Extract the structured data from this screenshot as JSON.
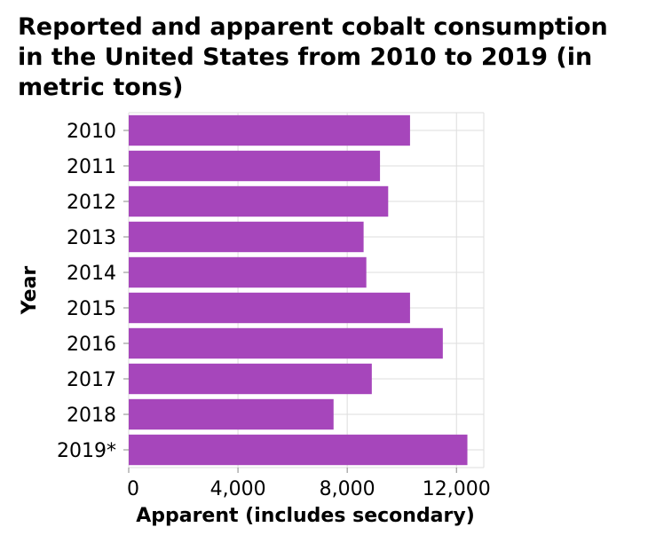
{
  "chart_data": {
    "type": "bar",
    "orientation": "horizontal",
    "title": "Reported and apparent cobalt consumption in the United States from 2010 to 2019 (in metric tons)",
    "xlabel": "Apparent (includes secondary)",
    "ylabel": "Year",
    "categories": [
      "2010",
      "2011",
      "2012",
      "2013",
      "2014",
      "2015",
      "2016",
      "2017",
      "2018",
      "2019*"
    ],
    "values": [
      10300,
      9200,
      9500,
      8600,
      8700,
      10300,
      11500,
      8900,
      7500,
      12400
    ],
    "xlim": [
      0,
      13000
    ],
    "xticks": [
      0,
      4000,
      8000,
      12000
    ],
    "xtick_labels": [
      "0",
      "4,000",
      "8,000",
      "12,000"
    ],
    "grid": true,
    "colors": {
      "bar": "#a646bb",
      "grid": "#dddddd"
    }
  }
}
